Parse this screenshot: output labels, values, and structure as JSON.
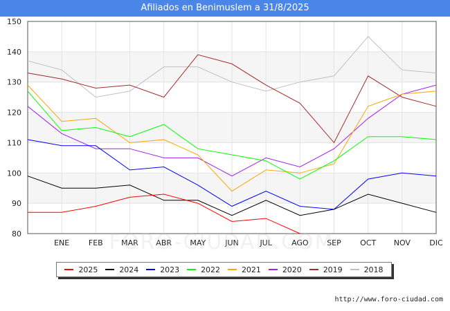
{
  "chart_data": {
    "type": "line",
    "title": "Afiliados en Benimuslem a 31/8/2025",
    "categories": [
      "",
      "ENE",
      "FEB",
      "MAR",
      "ABR",
      "MAY",
      "JUN",
      "JUL",
      "AGO",
      "SEP",
      "OCT",
      "NOV",
      "DIC"
    ],
    "ylim": [
      80,
      150
    ],
    "yticks": [
      80,
      90,
      100,
      110,
      120,
      130,
      140,
      150
    ],
    "grid": true,
    "legend_position": "bottom",
    "series": [
      {
        "name": "2025",
        "color": "#ff0000",
        "values": [
          87,
          87,
          89,
          92,
          93,
          90,
          84,
          85,
          80,
          null,
          null,
          null,
          null
        ]
      },
      {
        "name": "2024",
        "color": "#000000",
        "values": [
          99,
          95,
          95,
          96,
          91,
          91,
          86,
          91,
          86,
          88,
          93,
          90,
          87
        ]
      },
      {
        "name": "2023",
        "color": "#0000ff",
        "values": [
          111,
          109,
          109,
          101,
          102,
          96,
          89,
          94,
          89,
          88,
          98,
          100,
          99
        ]
      },
      {
        "name": "2022",
        "color": "#00ff00",
        "values": [
          127,
          114,
          115,
          112,
          116,
          108,
          106,
          104,
          98,
          104,
          112,
          112,
          111
        ]
      },
      {
        "name": "2021",
        "color": "#ffa500",
        "values": [
          129,
          117,
          118,
          110,
          111,
          106,
          94,
          101,
          100,
          103,
          122,
          126,
          127
        ]
      },
      {
        "name": "2020",
        "color": "#a020f0",
        "values": [
          122,
          113,
          108,
          108,
          105,
          105,
          99,
          105,
          102,
          108,
          118,
          126,
          129
        ]
      },
      {
        "name": "2019",
        "color": "#a52a2a",
        "values": [
          133,
          131,
          128,
          129,
          125,
          139,
          136,
          129,
          123,
          110,
          132,
          125,
          122
        ]
      },
      {
        "name": "2018",
        "color": "#c0c0c0",
        "values": [
          137,
          134,
          125,
          127,
          135,
          135,
          130,
          127,
          130,
          132,
          145,
          134,
          133
        ]
      }
    ]
  },
  "watermark_text": "FORO-CIUDAD.COM",
  "source_text": "http://www.foro-ciudad.com"
}
